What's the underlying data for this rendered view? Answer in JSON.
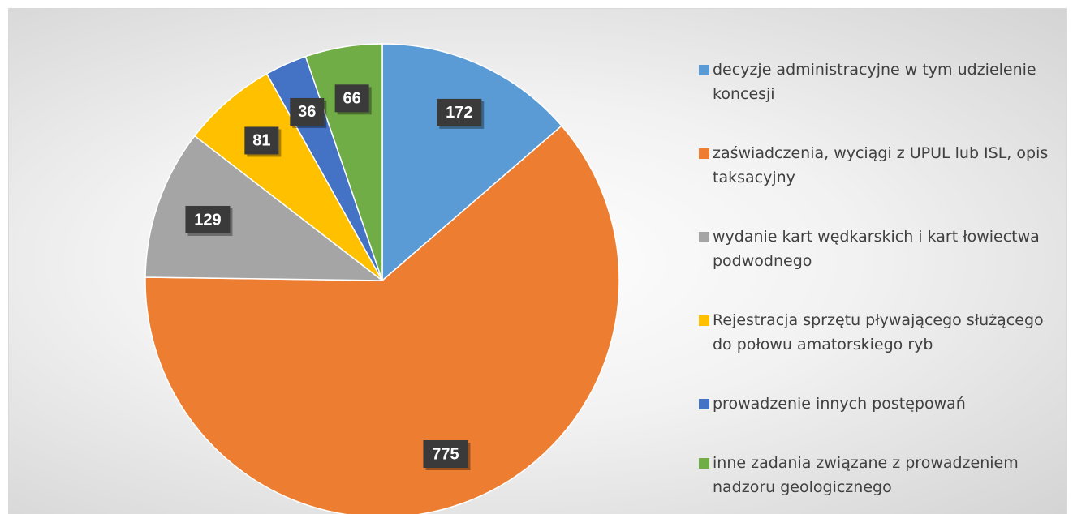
{
  "chart_data": {
    "type": "pie",
    "categories": [
      "decyzje administracyjne w tym udzielenie koncesji",
      "zaświadczenia, wyciągi z UPUL lub ISL, opis taksacyjny",
      "wydanie kart wędkarskich i kart łowiectwa podwodnego",
      "Rejestracja sprzętu pływającego służącego do połowu amatorskiego ryb",
      "prowadzenie innych postępowań",
      "inne zadania związane z prowadzeniem nadzoru geologicznego"
    ],
    "values": [
      172,
      775,
      129,
      81,
      36,
      66
    ],
    "colors": [
      "#5b9bd5",
      "#ed7d31",
      "#a5a5a5",
      "#ffc000",
      "#4472c4",
      "#70ad47"
    ],
    "legend": "right"
  }
}
